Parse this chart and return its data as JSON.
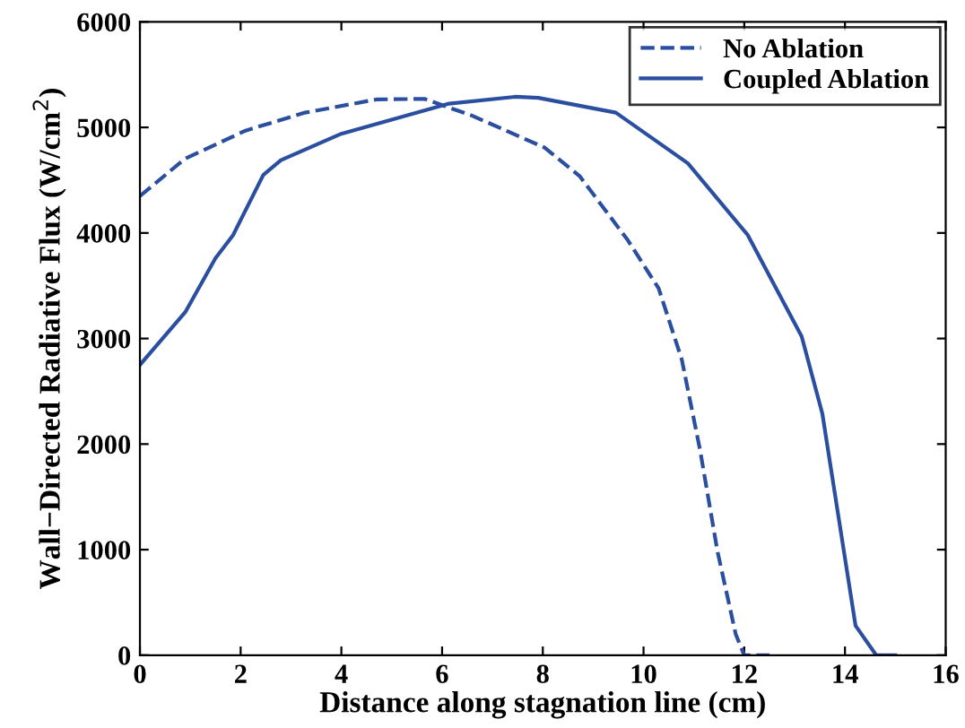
{
  "chart_data": {
    "type": "line",
    "xlabel": "Distance along stagnation line (cm)",
    "ylabel": "Wall−Directed Radiative Flux (W/cm$^{2}$)",
    "xlim": [
      0,
      16
    ],
    "ylim": [
      0,
      6000
    ],
    "xticks": [
      0,
      2,
      4,
      6,
      8,
      10,
      12,
      14,
      16
    ],
    "yticks": [
      0,
      1000,
      2000,
      3000,
      4000,
      5000,
      6000
    ],
    "legend": "top right",
    "grid": false,
    "series": [
      {
        "name": "No Ablation",
        "color": "#2a4ea0",
        "line_style": "dashed",
        "x": [
          0,
          0.9,
          2.1,
          3.28,
          4.7,
          5.65,
          6.6,
          8.03,
          8.73,
          9.69,
          10.3,
          10.76,
          11.12,
          11.47,
          11.83,
          12.0,
          12.5
        ],
        "values": [
          4350,
          4705,
          4970,
          5140,
          5265,
          5270,
          5110,
          4810,
          4540,
          3930,
          3475,
          2800,
          1950,
          980,
          200,
          0,
          0
        ]
      },
      {
        "name": "Coupled Ablation",
        "color": "#2a4ea0",
        "line_style": "solid",
        "x": [
          0,
          0.9,
          1.5,
          1.85,
          2.45,
          2.8,
          4.0,
          6.14,
          7.45,
          7.91,
          9.45,
          10.88,
          12.07,
          13.14,
          13.55,
          14.21,
          14.62,
          15.0
        ],
        "values": [
          2750,
          3250,
          3760,
          3980,
          4550,
          4690,
          4940,
          5225,
          5290,
          5280,
          5140,
          4660,
          3980,
          3020,
          2290,
          280,
          0,
          0
        ]
      }
    ]
  }
}
